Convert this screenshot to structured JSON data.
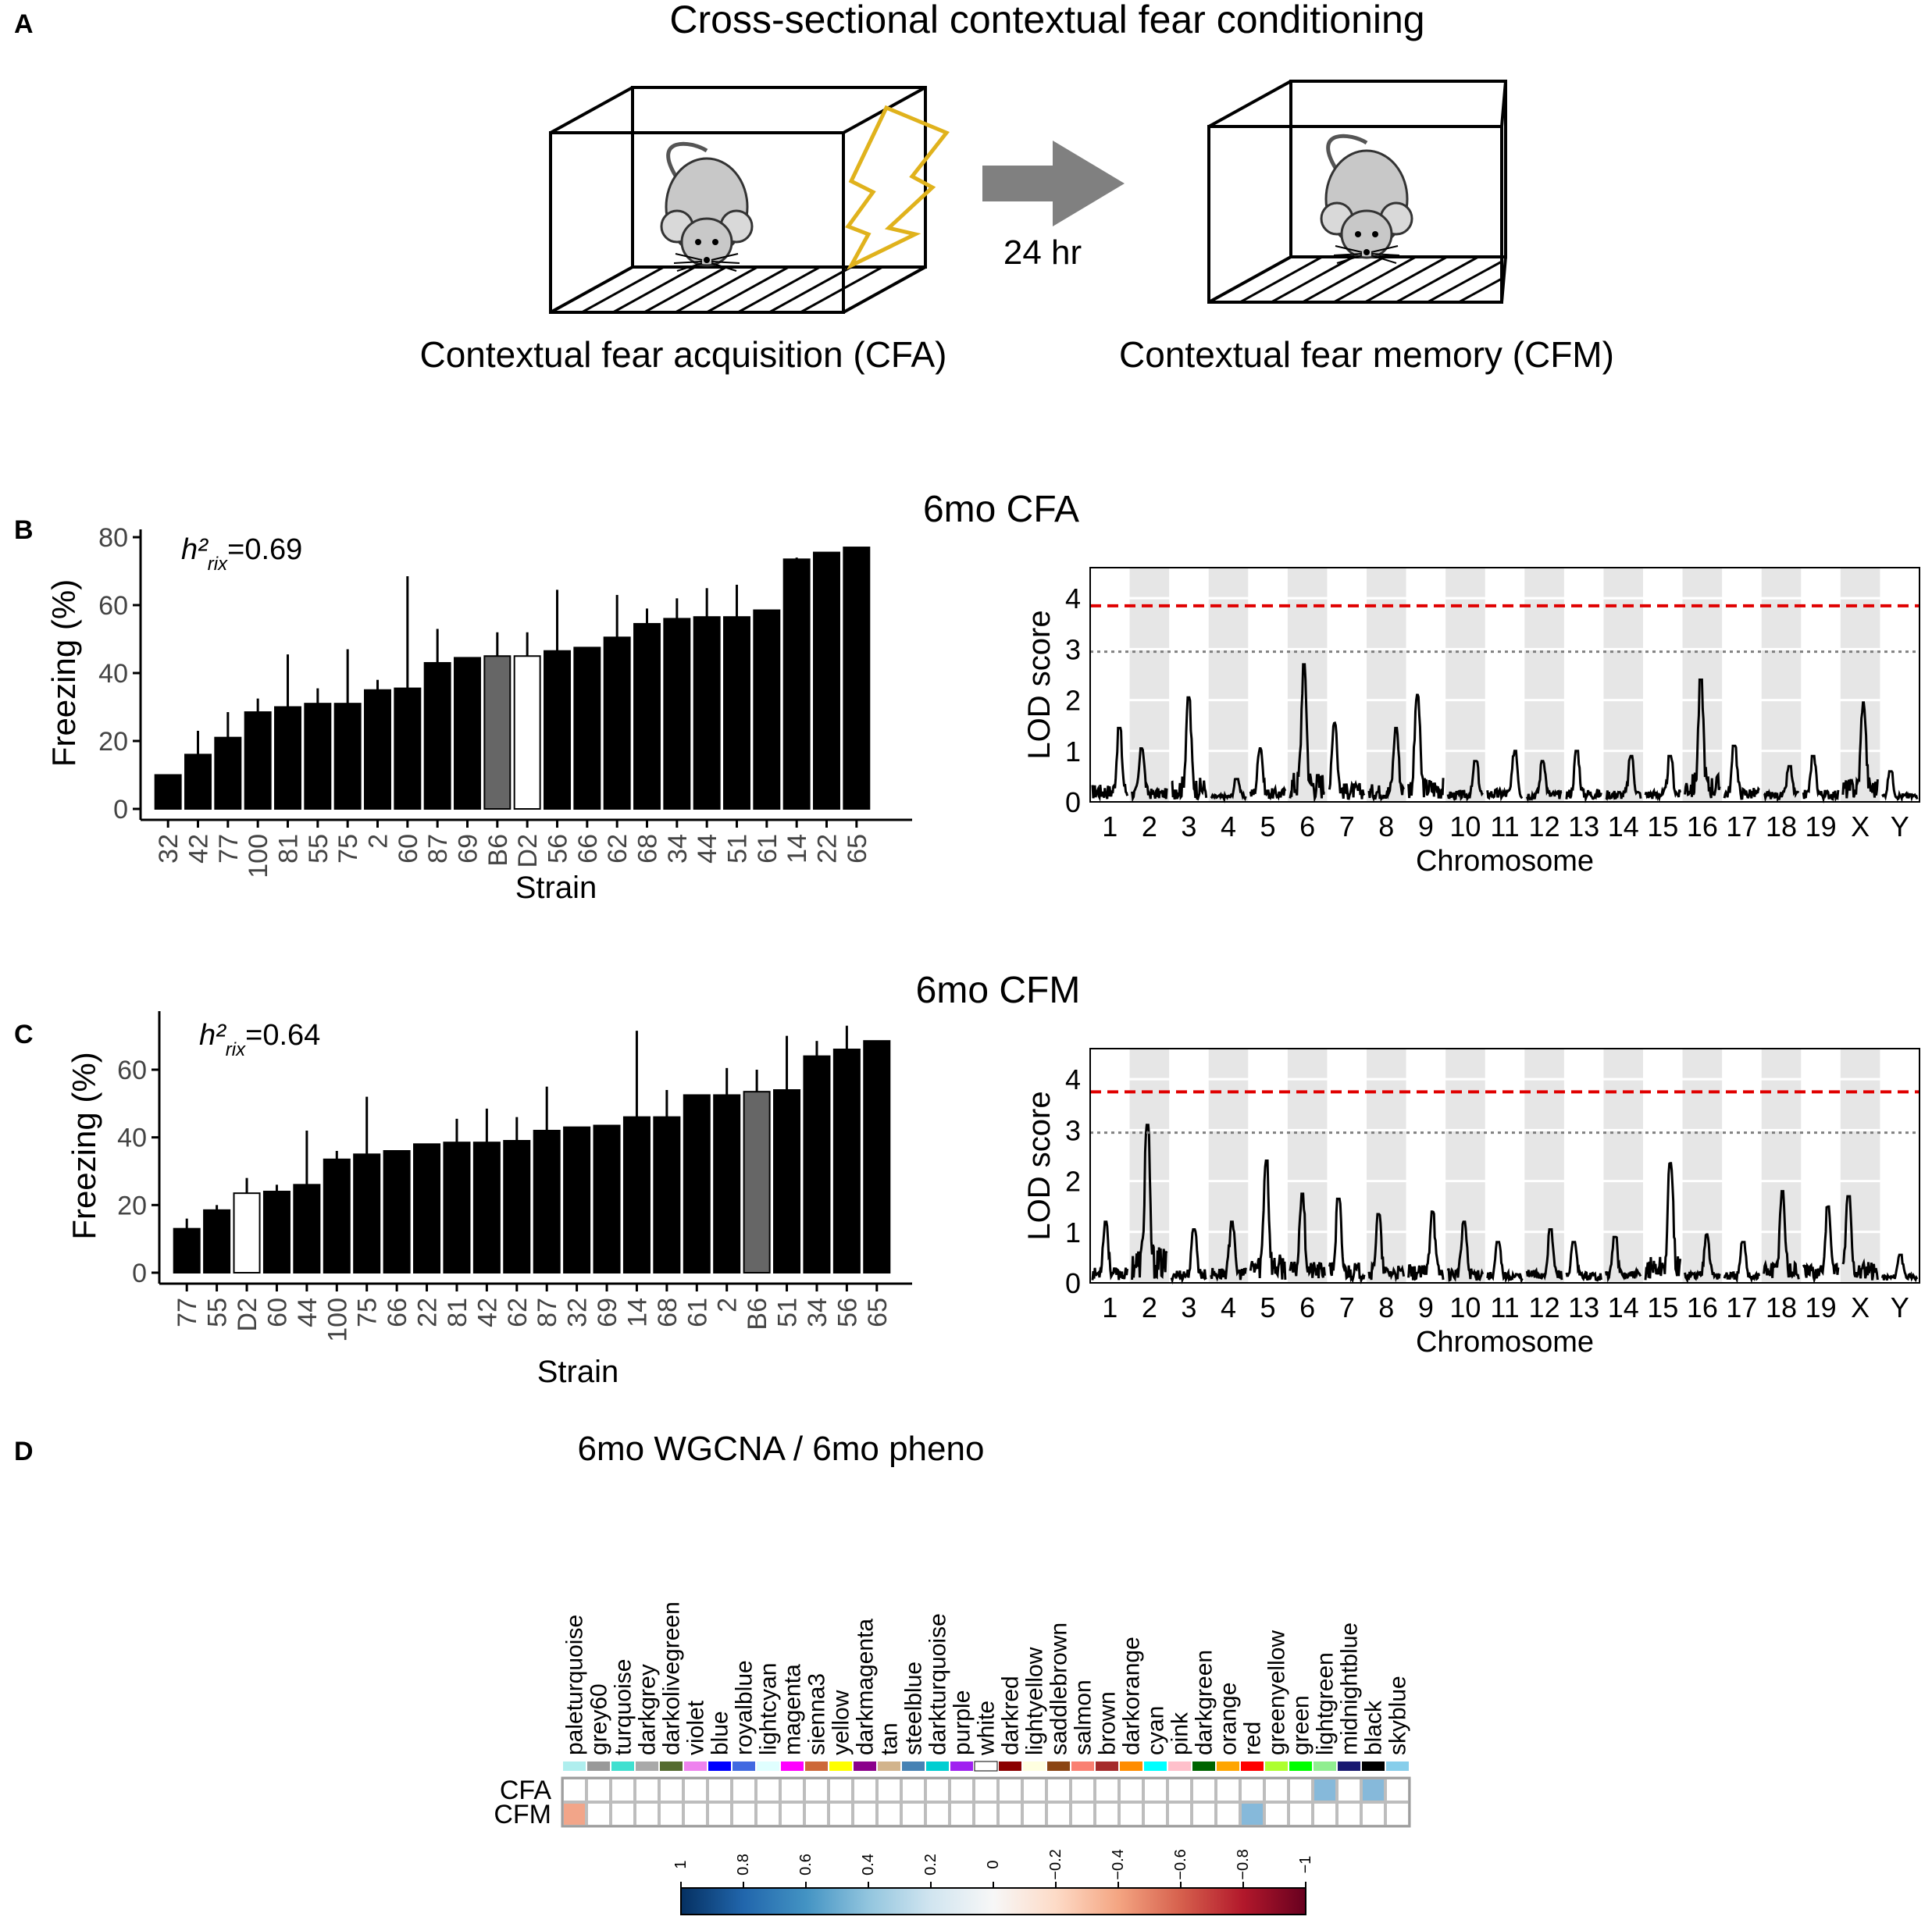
{
  "panel_a": {
    "letter": "A",
    "title": "Cross-sectional contextual fear conditioning",
    "acquisition_label": "Contextual fear acquisition (CFA)",
    "memory_label": "Contextual fear memory (CFM)",
    "delay_label": "24 hr",
    "colors": {
      "bolt": "#e0b21c",
      "arrow": "#808080",
      "mouse": "#c8c8c8"
    }
  },
  "panel_b": {
    "letter": "B",
    "section_title": "6mo CFA",
    "heritability": {
      "prefix": "h²",
      "subscript": "rix",
      "value": "=0.69"
    }
  },
  "panel_c": {
    "letter": "C",
    "section_title": "6mo CFM",
    "heritability": {
      "prefix": "h²",
      "subscript": "rix",
      "value": "=0.64"
    }
  },
  "panel_d": {
    "letter": "D",
    "section_title": "6mo WGCNA / 6mo pheno"
  },
  "chart_data": [
    {
      "id": "cfa_bar",
      "type": "bar",
      "xlabel": "Strain",
      "ylabel": "Freezing (%)",
      "ylim": [
        0,
        80
      ],
      "yticks": [
        0,
        20,
        40,
        60,
        80
      ],
      "categories": [
        "32",
        "42",
        "77",
        "100",
        "81",
        "55",
        "75",
        "2",
        "60",
        "87",
        "69",
        "B6",
        "D2",
        "56",
        "66",
        "62",
        "68",
        "34",
        "44",
        "51",
        "61",
        "14",
        "22",
        "65"
      ],
      "values": [
        10,
        16,
        21,
        28.5,
        30,
        31,
        31,
        35,
        35.5,
        43,
        44.5,
        45,
        45,
        46.5,
        47.5,
        50.5,
        54.5,
        56,
        56.5,
        56.5,
        58.5,
        73.5,
        75.5,
        77
      ],
      "error_upper": [
        null,
        23,
        28.5,
        32.5,
        45.5,
        35.5,
        47,
        38,
        68.5,
        53,
        null,
        52,
        52,
        64.5,
        null,
        63,
        59,
        62,
        65,
        66,
        null,
        74,
        null,
        null
      ],
      "bar_fill": [
        "black",
        "black",
        "black",
        "black",
        "black",
        "black",
        "black",
        "black",
        "black",
        "black",
        "black",
        "grey",
        "white",
        "black",
        "black",
        "black",
        "black",
        "black",
        "black",
        "black",
        "black",
        "black",
        "black",
        "black"
      ]
    },
    {
      "id": "cfa_lod",
      "type": "line",
      "xlabel": "Chromosome",
      "ylabel": "LOD score",
      "ylim": [
        0,
        4.6
      ],
      "yticks": [
        0,
        1,
        2,
        3,
        4
      ],
      "chromosomes": [
        "1",
        "2",
        "3",
        "4",
        "5",
        "6",
        "7",
        "8",
        "9",
        "10",
        "11",
        "12",
        "13",
        "14",
        "15",
        "16",
        "17",
        "18",
        "19",
        "X",
        "Y"
      ],
      "thresholds": [
        {
          "value": 3.85,
          "color": "#e00000",
          "style": "dashed"
        },
        {
          "value": 2.95,
          "color": "#808080",
          "style": "dotted"
        }
      ],
      "chromosome_peaks": [
        1.45,
        1.05,
        2.05,
        0.45,
        1.05,
        2.7,
        1.55,
        1.45,
        2.1,
        0.8,
        1.0,
        0.8,
        1.0,
        0.9,
        0.9,
        2.4,
        1.1,
        0.7,
        0.9,
        1.95,
        0.6
      ]
    },
    {
      "id": "cfm_bar",
      "type": "bar",
      "xlabel": "Strain",
      "ylabel": "Freezing (%)",
      "ylim": [
        0,
        75
      ],
      "yticks": [
        0,
        20,
        40,
        60
      ],
      "categories": [
        "77",
        "55",
        "D2",
        "60",
        "44",
        "100",
        "75",
        "66",
        "22",
        "81",
        "42",
        "62",
        "87",
        "32",
        "69",
        "14",
        "68",
        "61",
        "2",
        "B6",
        "51",
        "34",
        "56",
        "65"
      ],
      "values": [
        13,
        18.5,
        23.5,
        24,
        26,
        33.5,
        35,
        36,
        38,
        38.5,
        38.5,
        39,
        42,
        43,
        43.5,
        46,
        46,
        52.5,
        52.5,
        53.5,
        54,
        64,
        66,
        68.5
      ],
      "error_upper": [
        16,
        20,
        28,
        26,
        42,
        36,
        52,
        null,
        null,
        45.5,
        48.5,
        46,
        55,
        null,
        null,
        71.5,
        54,
        null,
        60.5,
        60,
        70,
        68.5,
        73,
        null
      ],
      "bar_fill": [
        "black",
        "black",
        "white",
        "black",
        "black",
        "black",
        "black",
        "black",
        "black",
        "black",
        "black",
        "black",
        "black",
        "black",
        "black",
        "black",
        "black",
        "black",
        "black",
        "grey",
        "black",
        "black",
        "black",
        "black"
      ]
    },
    {
      "id": "cfm_lod",
      "type": "line",
      "xlabel": "Chromosome",
      "ylabel": "LOD score",
      "ylim": [
        0,
        4.6
      ],
      "yticks": [
        0,
        1,
        2,
        3,
        4
      ],
      "chromosomes": [
        "1",
        "2",
        "3",
        "4",
        "5",
        "6",
        "7",
        "8",
        "9",
        "10",
        "11",
        "12",
        "13",
        "14",
        "15",
        "16",
        "17",
        "18",
        "19",
        "X",
        "Y"
      ],
      "thresholds": [
        {
          "value": 3.75,
          "color": "#e00000",
          "style": "dashed"
        },
        {
          "value": 2.95,
          "color": "#808080",
          "style": "dotted"
        }
      ],
      "chromosome_peaks": [
        1.2,
        3.1,
        1.05,
        1.2,
        2.4,
        1.75,
        1.65,
        1.35,
        1.4,
        1.2,
        0.8,
        1.05,
        0.8,
        0.9,
        2.35,
        0.95,
        0.8,
        1.8,
        1.5,
        1.7,
        0.55
      ]
    },
    {
      "id": "wgcna_heatmap",
      "type": "heatmap",
      "title": "6mo WGCNA / 6mo pheno",
      "rows": [
        "CFA",
        "CFM"
      ],
      "columns": [
        "paleturquoise",
        "grey60",
        "turquoise",
        "darkgrey",
        "darkolivegreen",
        "violet",
        "blue",
        "royalblue",
        "lightcyan",
        "magenta",
        "sienna3",
        "yellow",
        "darkmagenta",
        "tan",
        "steelblue",
        "darkturquoise",
        "purple",
        "white",
        "darkred",
        "lightyellow",
        "saddlebrown",
        "salmon",
        "brown",
        "darkorange",
        "cyan",
        "pink",
        "darkgreen",
        "orange",
        "red",
        "greenyellow",
        "green",
        "lightgreen",
        "midnightblue",
        "black",
        "skyblue"
      ],
      "module_colors": [
        "#afeeee",
        "#999999",
        "#40e0d0",
        "#a9a9a9",
        "#556b2f",
        "#ee82ee",
        "#0000ff",
        "#4169e1",
        "#e0ffff",
        "#ff00ff",
        "#cd6839",
        "#ffff00",
        "#8b008b",
        "#d2b48c",
        "#4682b4",
        "#00ced1",
        "#a020f0",
        "#ffffff",
        "#8b0000",
        "#ffffe0",
        "#8b4513",
        "#fa8072",
        "#a52a2a",
        "#ff8c00",
        "#00ffff",
        "#ffc0cb",
        "#006400",
        "#ffa500",
        "#ff0000",
        "#adff2f",
        "#00ff00",
        "#90ee90",
        "#191970",
        "#000000",
        "#87ceeb"
      ],
      "significant_cells": [
        {
          "row": "CFA",
          "column": "lightgreen",
          "value": 0.35
        },
        {
          "row": "CFA",
          "column": "black",
          "value": 0.3
        },
        {
          "row": "CFM",
          "column": "paleturquoise",
          "value": -0.35
        },
        {
          "row": "CFM",
          "column": "red",
          "value": 0.35
        }
      ],
      "colorbar": {
        "range": [
          1,
          -1
        ],
        "tick_labels": [
          "1",
          "0.8",
          "0.6",
          "0.4",
          "0.2",
          "0",
          "−0.2",
          "−0.4",
          "−0.6",
          "−0.8",
          "−1"
        ],
        "colors": {
          "positive": "#053061",
          "mid": "#f7f7f7",
          "negative": "#67001f"
        }
      }
    }
  ]
}
